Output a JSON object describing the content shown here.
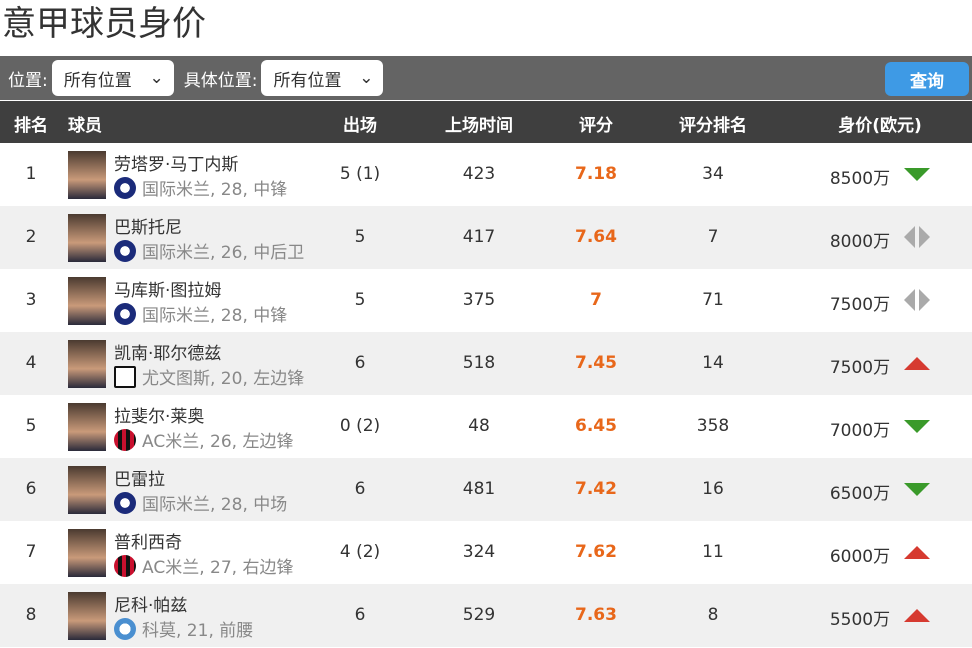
{
  "title": "意甲球员身价",
  "filters": {
    "position_label": "位置:",
    "position_value": "所有位置",
    "detail_label": "具体位置:",
    "detail_value": "所有位置",
    "query": "查询"
  },
  "headers": [
    "排名",
    "球员",
    "出场",
    "上场时间",
    "评分",
    "评分排名",
    "身价(欧元)"
  ],
  "colors": {
    "rating": "#e8671a",
    "down": "#3a9a2a",
    "up": "#d63a30",
    "same": "#aaaaaa",
    "accent": "#3e9ae5"
  },
  "rows": [
    {
      "rank": "1",
      "name": "劳塔罗·马丁内斯",
      "club": "国际米兰",
      "info": ", 28, 中锋",
      "apps": "5 (1)",
      "mins": "423",
      "rating": "7.18",
      "rrank": "34",
      "value": "8500万",
      "trend": "down",
      "club_icon": "inter"
    },
    {
      "rank": "2",
      "name": "巴斯托尼",
      "club": "国际米兰",
      "info": ", 26, 中后卫",
      "apps": "5",
      "mins": "417",
      "rating": "7.64",
      "rrank": "7",
      "value": "8000万",
      "trend": "same",
      "club_icon": "inter"
    },
    {
      "rank": "3",
      "name": "马库斯·图拉姆",
      "club": "国际米兰",
      "info": ", 28, 中锋",
      "apps": "5",
      "mins": "375",
      "rating": "7",
      "rrank": "71",
      "value": "7500万",
      "trend": "same",
      "club_icon": "inter"
    },
    {
      "rank": "4",
      "name": "凯南·耶尔德兹",
      "club": "尤文图斯",
      "info": ", 20, 左边锋",
      "apps": "6",
      "mins": "518",
      "rating": "7.45",
      "rrank": "14",
      "value": "7500万",
      "trend": "up",
      "club_icon": "juventus"
    },
    {
      "rank": "5",
      "name": "拉斐尔·莱奥",
      "club": "AC米兰",
      "info": ", 26, 左边锋",
      "apps": "0 (2)",
      "mins": "48",
      "rating": "6.45",
      "rrank": "358",
      "value": "7000万",
      "trend": "down",
      "club_icon": "milan"
    },
    {
      "rank": "6",
      "name": "巴雷拉",
      "club": "国际米兰",
      "info": ", 28, 中场",
      "apps": "6",
      "mins": "481",
      "rating": "7.42",
      "rrank": "16",
      "value": "6500万",
      "trend": "down",
      "club_icon": "inter"
    },
    {
      "rank": "7",
      "name": "普利西奇",
      "club": "AC米兰",
      "info": ", 27, 右边锋",
      "apps": "4 (2)",
      "mins": "324",
      "rating": "7.62",
      "rrank": "11",
      "value": "6000万",
      "trend": "up",
      "club_icon": "milan"
    },
    {
      "rank": "8",
      "name": "尼科·帕兹",
      "club": "科莫",
      "info": ", 21, 前腰",
      "apps": "6",
      "mins": "529",
      "rating": "7.63",
      "rrank": "8",
      "value": "5500万",
      "trend": "up",
      "club_icon": "como"
    }
  ]
}
